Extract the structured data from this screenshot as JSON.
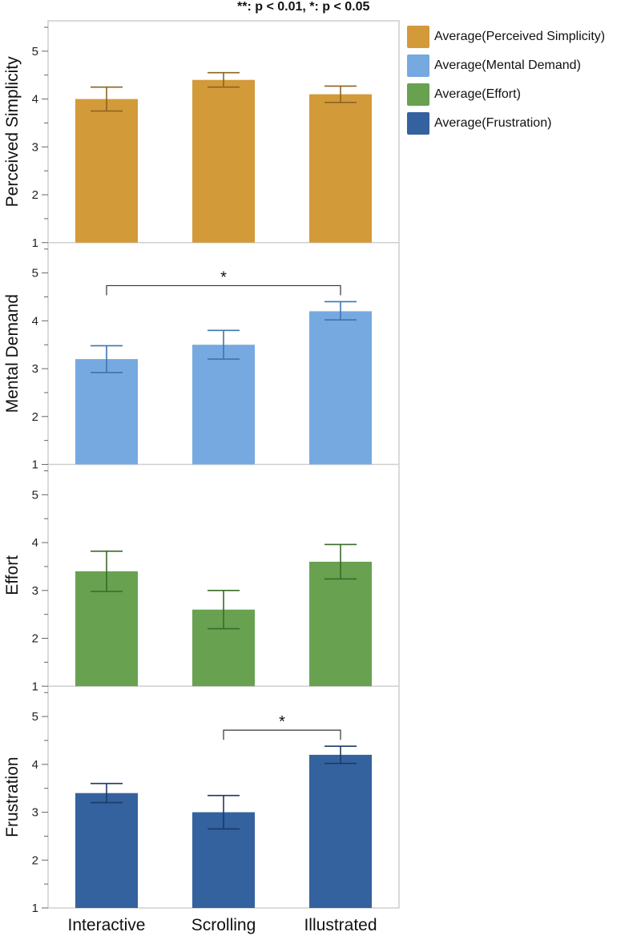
{
  "note": "**: p < 0.01, *: p < 0.05",
  "legend": {
    "position": "top-right",
    "items": [
      {
        "label": "Average(Perceived Simplicity)",
        "color": "#D39A3A"
      },
      {
        "label": "Average(Mental Demand)",
        "color": "#76A9E0"
      },
      {
        "label": "Average(Effort)",
        "color": "#68A150"
      },
      {
        "label": "Average(Frustration)",
        "color": "#33629E"
      }
    ]
  },
  "chart_data": {
    "type": "bar",
    "categories": [
      "Interactive",
      "Scrolling",
      "Illustrated"
    ],
    "ylim": [
      1,
      5.5
    ],
    "yticks": [
      1,
      2,
      3,
      4,
      5
    ],
    "grid": false,
    "panels": [
      {
        "ylabel": "Perceived Simplicity",
        "color": "#D39A3A",
        "error_color": "#8a6520",
        "values": [
          4.0,
          4.4,
          4.1
        ],
        "error": [
          [
            3.75,
            4.25
          ],
          [
            4.25,
            4.55
          ],
          [
            3.93,
            4.27
          ]
        ],
        "significance": []
      },
      {
        "ylabel": "Mental Demand",
        "color": "#76A9E0",
        "error_color": "#3f73b0",
        "values": [
          3.2,
          3.5,
          4.2
        ],
        "error": [
          [
            2.92,
            3.48
          ],
          [
            3.2,
            3.8
          ],
          [
            4.02,
            4.4
          ]
        ],
        "significance": [
          {
            "from": 0,
            "to": 2,
            "label": "*"
          }
        ]
      },
      {
        "ylabel": "Effort",
        "color": "#68A150",
        "error_color": "#3b6a28",
        "values": [
          3.4,
          2.6,
          3.6
        ],
        "error": [
          [
            2.98,
            3.82
          ],
          [
            2.2,
            3.0
          ],
          [
            3.24,
            3.96
          ]
        ],
        "significance": []
      },
      {
        "ylabel": "Frustration",
        "color": "#33629E",
        "error_color": "#1c3a66",
        "values": [
          3.4,
          3.0,
          4.2
        ],
        "error": [
          [
            3.2,
            3.6
          ],
          [
            2.65,
            3.35
          ],
          [
            4.02,
            4.38
          ]
        ],
        "significance": [
          {
            "from": 1,
            "to": 2,
            "label": "*"
          }
        ]
      }
    ]
  }
}
